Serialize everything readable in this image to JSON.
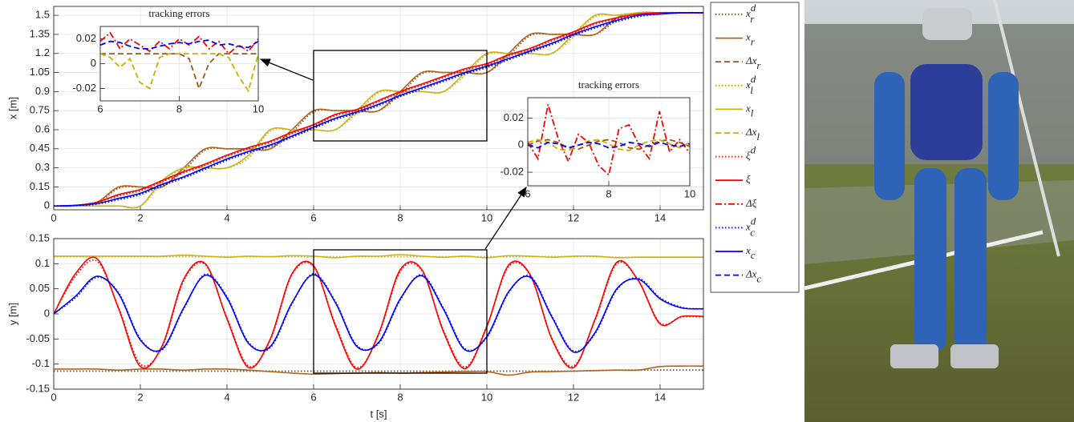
{
  "chart_data": [
    {
      "type": "line",
      "ylabel": "x [m]",
      "grid": true,
      "x": [
        0,
        0.5,
        1,
        1.5,
        2,
        2.5,
        3,
        3.5,
        4,
        4.5,
        5,
        5.5,
        6,
        6.5,
        7,
        7.5,
        8,
        8.5,
        9,
        9.5,
        10,
        10.5,
        11,
        11.5,
        12,
        12.5,
        13,
        13.5,
        14,
        14.5,
        15
      ],
      "xlim": [
        0,
        15
      ],
      "xticks": [
        0,
        2,
        4,
        6,
        8,
        10,
        12,
        14
      ],
      "ylim": [
        -0.03,
        1.57
      ],
      "yticks": [
        0,
        0.15,
        0.3,
        0.45,
        0.6,
        0.75,
        0.9,
        1.05,
        1.2,
        1.35,
        1.5
      ],
      "series": [
        {
          "name": "x_r^d",
          "color": "#8b4a12",
          "style": "dotted",
          "values": [
            0,
            0,
            0.02,
            0.14,
            0.15,
            0.15,
            0.28,
            0.44,
            0.45,
            0.45,
            0.45,
            0.58,
            0.74,
            0.75,
            0.75,
            0.75,
            0.88,
            1.04,
            1.05,
            1.05,
            1.05,
            1.18,
            1.34,
            1.35,
            1.35,
            1.35,
            1.46,
            1.52,
            1.52,
            1.52,
            1.52
          ]
        },
        {
          "name": "x_r",
          "color": "#b0651e",
          "style": "solid",
          "values": [
            0,
            0,
            0.03,
            0.15,
            0.15,
            0.15,
            0.3,
            0.45,
            0.45,
            0.45,
            0.45,
            0.6,
            0.75,
            0.75,
            0.75,
            0.75,
            0.9,
            1.05,
            1.05,
            1.05,
            1.05,
            1.2,
            1.35,
            1.35,
            1.35,
            1.35,
            1.48,
            1.52,
            1.52,
            1.52,
            1.52
          ]
        },
        {
          "name": "x_l^d",
          "color": "#c9b000",
          "style": "dotted",
          "values": [
            0,
            0,
            0,
            0,
            0,
            0.18,
            0.3,
            0.3,
            0.3,
            0.38,
            0.59,
            0.6,
            0.6,
            0.6,
            0.73,
            0.89,
            0.9,
            0.9,
            0.9,
            1.03,
            1.19,
            1.2,
            1.2,
            1.2,
            1.33,
            1.49,
            1.5,
            1.52,
            1.52,
            1.52,
            1.52
          ]
        },
        {
          "name": "x_l",
          "color": "#cdb21c",
          "style": "solid",
          "values": [
            0,
            0,
            0,
            0,
            0,
            0.2,
            0.3,
            0.3,
            0.3,
            0.4,
            0.6,
            0.6,
            0.6,
            0.6,
            0.75,
            0.9,
            0.9,
            0.9,
            0.9,
            1.05,
            1.2,
            1.2,
            1.2,
            1.2,
            1.35,
            1.5,
            1.5,
            1.52,
            1.52,
            1.52,
            1.52
          ]
        },
        {
          "name": "ξ^d",
          "color": "#ff0000",
          "style": "dotted",
          "values": [
            0,
            0.005,
            0.03,
            0.08,
            0.12,
            0.19,
            0.26,
            0.32,
            0.39,
            0.45,
            0.5,
            0.57,
            0.63,
            0.71,
            0.75,
            0.82,
            0.89,
            0.95,
            1.01,
            1.07,
            1.11,
            1.18,
            1.23,
            1.3,
            1.36,
            1.43,
            1.47,
            1.5,
            1.52,
            1.52,
            1.52
          ]
        },
        {
          "name": "ξ",
          "color": "#ff0000",
          "style": "solid",
          "values": [
            0,
            0.005,
            0.03,
            0.09,
            0.13,
            0.2,
            0.27,
            0.33,
            0.4,
            0.46,
            0.51,
            0.58,
            0.64,
            0.72,
            0.76,
            0.83,
            0.9,
            0.96,
            1.02,
            1.08,
            1.12,
            1.19,
            1.24,
            1.31,
            1.37,
            1.44,
            1.48,
            1.51,
            1.52,
            1.52,
            1.52
          ]
        },
        {
          "name": "x_c^d",
          "color": "#0000ff",
          "style": "dotted",
          "values": [
            0,
            0.004,
            0.015,
            0.05,
            0.09,
            0.16,
            0.22,
            0.29,
            0.36,
            0.42,
            0.47,
            0.54,
            0.61,
            0.68,
            0.73,
            0.79,
            0.86,
            0.92,
            0.98,
            1.04,
            1.09,
            1.15,
            1.21,
            1.27,
            1.34,
            1.4,
            1.45,
            1.49,
            1.51,
            1.52,
            1.52
          ]
        },
        {
          "name": "x_c",
          "color": "#0000ff",
          "style": "solid",
          "values": [
            0,
            0.005,
            0.02,
            0.06,
            0.1,
            0.17,
            0.23,
            0.3,
            0.37,
            0.43,
            0.48,
            0.55,
            0.62,
            0.69,
            0.74,
            0.8,
            0.87,
            0.93,
            0.99,
            1.05,
            1.1,
            1.16,
            1.22,
            1.28,
            1.35,
            1.41,
            1.46,
            1.5,
            1.51,
            1.52,
            1.52
          ]
        }
      ]
    },
    {
      "type": "line",
      "xlabel": "t [s]",
      "ylabel": "y [m]",
      "grid": true,
      "x": [
        0,
        0.5,
        1,
        1.5,
        2,
        2.5,
        3,
        3.5,
        4,
        4.5,
        5,
        5.5,
        6,
        6.5,
        7,
        7.5,
        8,
        8.5,
        9,
        9.5,
        10,
        10.5,
        11,
        11.5,
        12,
        12.5,
        13,
        13.5,
        14,
        14.5,
        15
      ],
      "xlim": [
        0,
        15
      ],
      "xticks": [
        0,
        2,
        4,
        6,
        8,
        10,
        12,
        14
      ],
      "ylim": [
        -0.15,
        0.15
      ],
      "yticks": [
        -0.15,
        -0.1,
        -0.05,
        0,
        0.05,
        0.1,
        0.15
      ],
      "series": [
        {
          "color": "#8b4a12",
          "style": "dotted",
          "values": [
            -0.114,
            -0.114,
            -0.114,
            -0.114,
            -0.114,
            -0.114,
            -0.114,
            -0.114,
            -0.114,
            -0.114,
            -0.114,
            -0.114,
            -0.114,
            -0.114,
            -0.114,
            -0.114,
            -0.114,
            -0.114,
            -0.114,
            -0.114,
            -0.114,
            -0.114,
            -0.114,
            -0.114,
            -0.114,
            -0.113,
            -0.112,
            -0.112,
            -0.112,
            -0.112,
            -0.112
          ]
        },
        {
          "color": "#b0651e",
          "style": "solid",
          "values": [
            -0.11,
            -0.11,
            -0.11,
            -0.112,
            -0.11,
            -0.11,
            -0.112,
            -0.11,
            -0.11,
            -0.112,
            -0.115,
            -0.118,
            -0.12,
            -0.119,
            -0.118,
            -0.117,
            -0.118,
            -0.117,
            -0.116,
            -0.115,
            -0.115,
            -0.122,
            -0.116,
            -0.115,
            -0.114,
            -0.113,
            -0.112,
            -0.112,
            -0.105,
            -0.104,
            -0.104
          ]
        },
        {
          "color": "#c9b000",
          "style": "dotted",
          "values": [
            0.114,
            0.114,
            0.114,
            0.114,
            0.114,
            0.114,
            0.114,
            0.114,
            0.114,
            0.114,
            0.114,
            0.114,
            0.114,
            0.114,
            0.114,
            0.114,
            0.114,
            0.114,
            0.114,
            0.114,
            0.114,
            0.114,
            0.114,
            0.114,
            0.114,
            0.114,
            0.113,
            0.113,
            0.113,
            0.113,
            0.113
          ]
        },
        {
          "color": "#cdb21c",
          "style": "solid",
          "values": [
            0.115,
            0.115,
            0.115,
            0.115,
            0.115,
            0.115,
            0.117,
            0.115,
            0.113,
            0.115,
            0.114,
            0.116,
            0.115,
            0.112,
            0.115,
            0.115,
            0.118,
            0.115,
            0.113,
            0.115,
            0.112,
            0.116,
            0.115,
            0.113,
            0.115,
            0.115,
            0.112,
            0.113,
            0.113,
            0.113,
            0.113
          ]
        },
        {
          "color": "#ff0000",
          "style": "dotted",
          "values": [
            0,
            0.075,
            0.105,
            0.012,
            -0.1,
            -0.066,
            0.066,
            0.098,
            -0.008,
            -0.104,
            -0.052,
            0.078,
            0.094,
            -0.02,
            -0.107,
            -0.042,
            0.085,
            0.086,
            -0.033,
            -0.106,
            -0.024,
            0.094,
            0.077,
            -0.048,
            -0.104,
            -0.012,
            0.1,
            0.066,
            -0.018,
            -0.006,
            -0.006
          ]
        },
        {
          "color": "#ff0000",
          "style": "solid",
          "values": [
            0,
            0.08,
            0.11,
            0.01,
            -0.105,
            -0.064,
            0.069,
            0.1,
            -0.01,
            -0.107,
            -0.05,
            0.08,
            0.096,
            -0.023,
            -0.11,
            -0.04,
            0.088,
            0.088,
            -0.036,
            -0.109,
            -0.025,
            0.097,
            0.078,
            -0.05,
            -0.107,
            -0.01,
            0.103,
            0.066,
            -0.02,
            -0.005,
            -0.005
          ]
        },
        {
          "color": "#0000ff",
          "style": "dotted",
          "values": [
            0,
            0.032,
            0.073,
            0.042,
            -0.05,
            -0.072,
            0.01,
            0.079,
            0.034,
            -0.057,
            -0.067,
            0.02,
            0.08,
            0.025,
            -0.063,
            -0.059,
            0.028,
            0.078,
            0.011,
            -0.07,
            -0.047,
            0.042,
            0.075,
            -0.004,
            -0.074,
            -0.039,
            0.048,
            0.071,
            0.032,
            0.013,
            0.01
          ]
        },
        {
          "color": "#0000ff",
          "style": "solid",
          "values": [
            0,
            0.035,
            0.075,
            0.04,
            -0.052,
            -0.07,
            0.012,
            0.077,
            0.032,
            -0.059,
            -0.065,
            0.022,
            0.078,
            0.023,
            -0.065,
            -0.057,
            0.03,
            0.076,
            0.009,
            -0.072,
            -0.045,
            0.044,
            0.073,
            -0.006,
            -0.076,
            -0.037,
            0.05,
            0.069,
            0.03,
            0.012,
            0.01
          ]
        }
      ]
    },
    {
      "type": "line",
      "title": "tracking errors",
      "grid": true,
      "x": [
        6,
        6.25,
        6.5,
        6.75,
        7,
        7.25,
        7.5,
        7.75,
        8,
        8.25,
        8.5,
        8.75,
        9,
        9.25,
        9.5,
        9.75,
        10
      ],
      "xlim": [
        6,
        10
      ],
      "xticks": [
        6,
        8,
        10
      ],
      "ylim": [
        -0.03,
        0.03
      ],
      "yticks": [
        -0.02,
        0,
        0.02
      ],
      "series": [
        {
          "name": "Δx_r",
          "color": "#a0541a",
          "style": "dashed",
          "values": [
            0.008,
            0.008,
            0.008,
            0.008,
            0.008,
            0.008,
            0.008,
            0.008,
            0.008,
            0.004,
            -0.02,
            0.0,
            0.008,
            0.008,
            0.008,
            0.008,
            0.008
          ]
        },
        {
          "name": "Δx_l",
          "color": "#c9b000",
          "style": "dashed",
          "values": [
            0.008,
            0.005,
            -0.003,
            0.004,
            -0.015,
            -0.02,
            0.005,
            0.008,
            0.008,
            0.008,
            0.008,
            0.008,
            0.008,
            0.005,
            -0.01,
            -0.022,
            0.008
          ]
        },
        {
          "name": "Δξ",
          "color": "#ff0000",
          "style": "dashdot",
          "values": [
            0.018,
            0.025,
            0.012,
            0.02,
            0.015,
            0.01,
            0.018,
            0.012,
            0.02,
            0.015,
            0.022,
            0.012,
            0.018,
            0.008,
            0.015,
            0.01,
            0.02
          ]
        },
        {
          "name": "Δx_c",
          "color": "#0000ff",
          "style": "dashed",
          "values": [
            0.015,
            0.018,
            0.017,
            0.014,
            0.012,
            0.012,
            0.014,
            0.016,
            0.017,
            0.016,
            0.018,
            0.019,
            0.015,
            0.016,
            0.014,
            0.013,
            0.018
          ]
        }
      ]
    },
    {
      "type": "line",
      "title": "tracking errors",
      "grid": true,
      "x": [
        6,
        6.25,
        6.5,
        6.75,
        7,
        7.25,
        7.5,
        7.75,
        8,
        8.25,
        8.5,
        8.75,
        9,
        9.25,
        9.5,
        9.75,
        10
      ],
      "xlim": [
        6,
        10
      ],
      "xticks": [
        6,
        8,
        10
      ],
      "ylim": [
        -0.03,
        0.035
      ],
      "yticks": [
        -0.02,
        0,
        0.02
      ],
      "series": [
        {
          "color": "#a0541a",
          "style": "dashed",
          "values": [
            0,
            0.003,
            0.004,
            0.002,
            -0.002,
            -0.003,
            0,
            0.003,
            0.004,
            0.002,
            -0.002,
            -0.003,
            0,
            0.003,
            0.004,
            0.002,
            -0.001
          ]
        },
        {
          "color": "#c9b000",
          "style": "dashed",
          "values": [
            0.002,
            0.004,
            0.002,
            -0.003,
            -0.004,
            0,
            0.003,
            0.004,
            0.001,
            -0.003,
            -0.004,
            0,
            0.003,
            0.004,
            0.001,
            -0.002,
            0.002
          ]
        },
        {
          "color": "#ff0000",
          "style": "dashdot",
          "values": [
            0.002,
            -0.01,
            0.03,
            0.005,
            -0.012,
            0.008,
            0.002,
            -0.015,
            -0.022,
            0.012,
            0.015,
            0,
            -0.01,
            0.025,
            -0.005,
            0.004,
            -0.006
          ]
        },
        {
          "color": "#0000ff",
          "style": "dashed",
          "values": [
            0,
            -0.002,
            0.002,
            0.001,
            -0.002,
            0,
            0.002,
            0.001,
            -0.002,
            -0.001,
            0.002,
            0.001,
            -0.001,
            0.002,
            0,
            -0.001,
            0.001
          ]
        }
      ]
    }
  ]
}
